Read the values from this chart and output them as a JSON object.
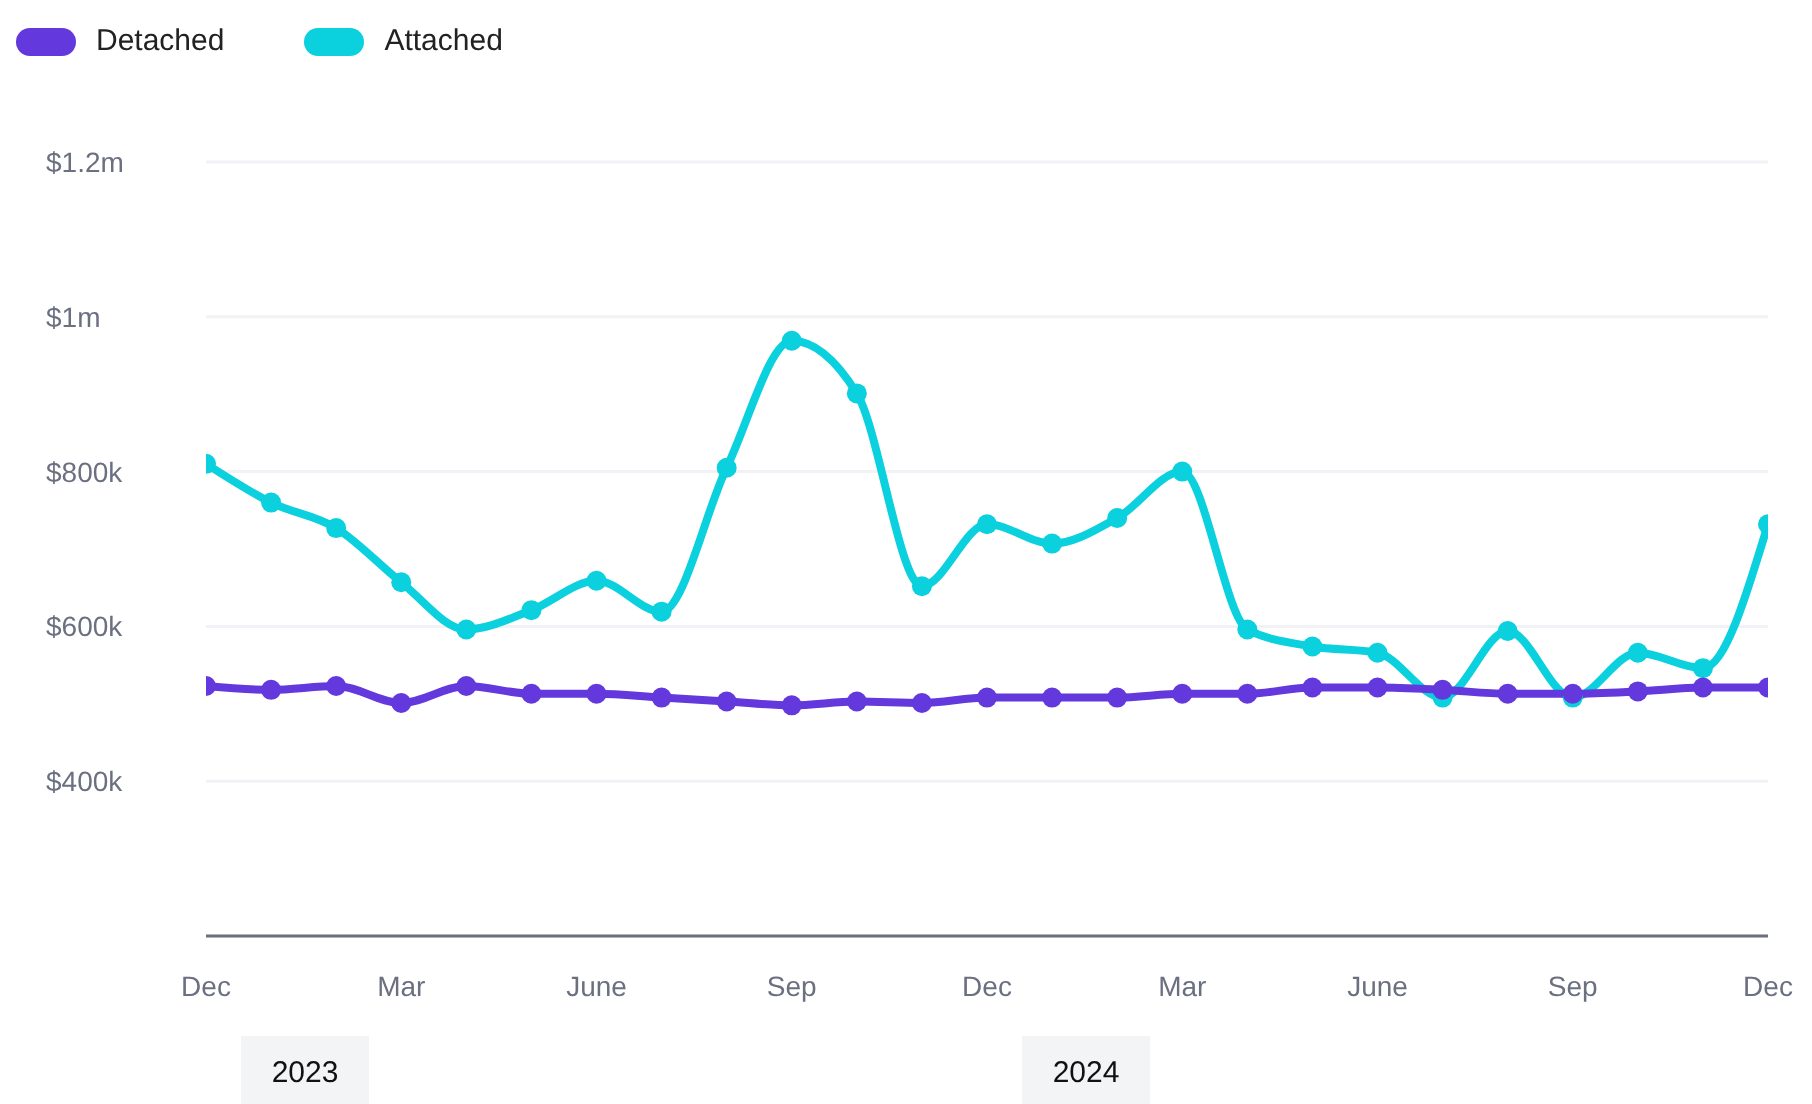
{
  "chart_data": {
    "type": "line",
    "x": [
      "2022-12",
      "2023-01",
      "2023-02",
      "2023-03",
      "2023-04",
      "2023-05",
      "2023-06",
      "2023-07",
      "2023-08",
      "2023-09",
      "2023-10",
      "2023-11",
      "2023-12",
      "2024-01",
      "2024-02",
      "2024-03",
      "2024-04",
      "2024-05",
      "2024-06",
      "2024-07",
      "2024-08",
      "2024-09",
      "2024-10",
      "2024-11",
      "2024-12"
    ],
    "series": [
      {
        "name": "Detached",
        "color": "#6338dc",
        "values": [
          523000,
          518000,
          523000,
          501000,
          523000,
          513000,
          513000,
          508000,
          503000,
          498000,
          503000,
          501000,
          508000,
          508000,
          508000,
          513000,
          513000,
          521000,
          521000,
          518000,
          513000,
          513000,
          516000,
          521000,
          521000
        ]
      },
      {
        "name": "Attached",
        "color": "#0bd0de",
        "values": [
          810000,
          760000,
          727000,
          657000,
          596000,
          621000,
          659000,
          619000,
          805000,
          969000,
          901000,
          652000,
          732000,
          707000,
          740000,
          800000,
          596000,
          574000,
          566000,
          508000,
          594000,
          508000,
          566000,
          546000,
          732000
        ]
      }
    ],
    "xlim": [
      "2022-12",
      "2024-12"
    ],
    "xticks": [
      {
        "value": "2022-12",
        "label": "Dec"
      },
      {
        "value": "2023-03",
        "label": "Mar"
      },
      {
        "value": "2023-06",
        "label": "June"
      },
      {
        "value": "2023-09",
        "label": "Sep"
      },
      {
        "value": "2023-12",
        "label": "Dec"
      },
      {
        "value": "2024-03",
        "label": "Mar"
      },
      {
        "value": "2024-06",
        "label": "June"
      },
      {
        "value": "2024-09",
        "label": "Sep"
      },
      {
        "value": "2024-12",
        "label": "Dec"
      }
    ],
    "ylim": [
      200000,
      1200000
    ],
    "yticks": [
      {
        "value": 400000,
        "label": "$400k"
      },
      {
        "value": 600000,
        "label": "$600k"
      },
      {
        "value": 800000,
        "label": "$800k"
      },
      {
        "value": 1000000,
        "label": "$1m"
      },
      {
        "value": 1200000,
        "label": "$1.2m"
      }
    ],
    "annotations": [
      "2023",
      "2024"
    ],
    "grid": "y",
    "legend": "top left",
    "marker": "circle",
    "line_style": "solid"
  }
}
